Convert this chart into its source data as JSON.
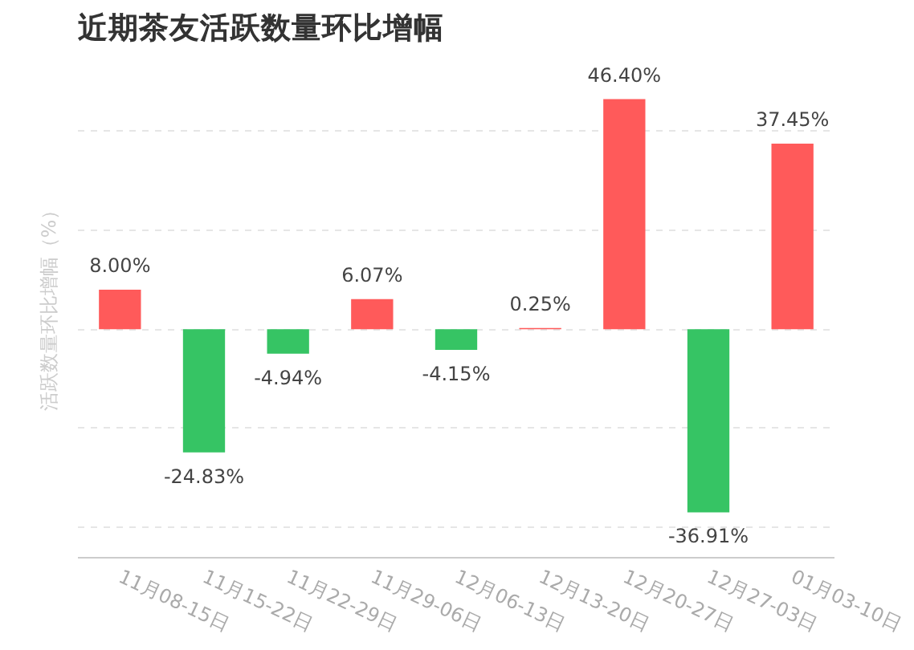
{
  "chart_data": {
    "type": "bar",
    "title": "近期茶友活跃数量环比增幅",
    "ylabel": "活跃数量环比增幅（%）",
    "categories": [
      "11月08-15日",
      "11月15-22日",
      "11月22-29日",
      "11月29-06日",
      "12月06-13日",
      "12月13-20日",
      "12月20-27日",
      "12月27-03日",
      "01月03-10日"
    ],
    "values": [
      8.0,
      -24.83,
      -4.94,
      6.07,
      -4.15,
      0.25,
      46.4,
      -36.91,
      37.45
    ],
    "colors": [
      "#ff5a5a",
      "#36c464",
      "#36c464",
      "#ff5a5a",
      "#36c464",
      "#ff5a5a",
      "#ff5a5a",
      "#36c464",
      "#ff5a5a"
    ],
    "value_labels": [
      "8.00%",
      "-24.83%",
      "-4.94%",
      "6.07%",
      "-4.15%",
      "0.25%",
      "46.40%",
      "-36.91%",
      "37.45%"
    ],
    "grid": "y",
    "tick_labels": "x"
  }
}
